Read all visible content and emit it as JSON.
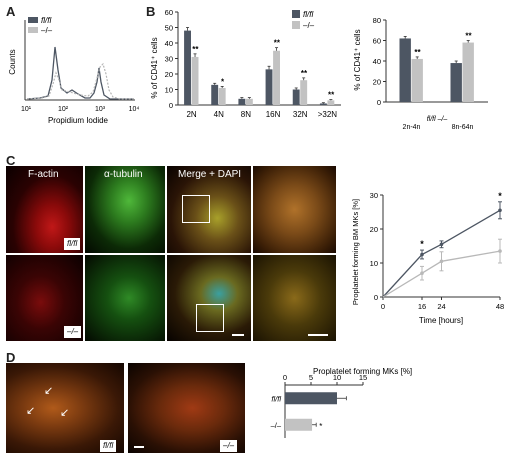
{
  "panels": {
    "a": "A",
    "b": "B",
    "c": "C",
    "d": "D"
  },
  "colors": {
    "fl": "#4d5663",
    "ko": "#c2c2c2"
  },
  "legend": {
    "fl": "fl/fl",
    "ko": "–/–"
  },
  "genotypes": {
    "fl": "fl/fl",
    "ko": "–/–"
  },
  "micro_labels": {
    "factin": "F-actin",
    "tubulin": "α-tubulin",
    "merge": "Merge + DAPI"
  },
  "chart_data": [
    {
      "id": "A",
      "type": "line",
      "xlabel": "Propidium Iodide",
      "ylabel": "Counts",
      "x_scale": "log",
      "x_ticks": [
        "10¹",
        "10²",
        "10³",
        "10⁴"
      ],
      "series": [
        {
          "name": "fl/fl"
        },
        {
          "name": "–/–"
        }
      ]
    },
    {
      "id": "B1",
      "type": "bar",
      "ylabel": "% of CD41⁺ cells",
      "ylim": [
        0,
        60
      ],
      "yticks": [
        "0",
        "10",
        "20",
        "30",
        "40",
        "50",
        "60"
      ],
      "categories": [
        "2N",
        "4N",
        "8N",
        "16N",
        "32N",
        ">32N"
      ],
      "series": [
        {
          "name": "fl/fl",
          "values": [
            48,
            13,
            4,
            23,
            10,
            1
          ],
          "errors": [
            2,
            1,
            0.8,
            2,
            1,
            0.5
          ]
        },
        {
          "name": "–/–",
          "values": [
            31,
            11,
            4,
            35,
            16,
            3
          ],
          "errors": [
            2,
            1,
            0.8,
            2,
            1.5,
            0.5
          ]
        }
      ],
      "annotations": [
        "**",
        "*",
        "",
        "**",
        "**",
        "**"
      ]
    },
    {
      "id": "B2",
      "type": "bar",
      "ylabel": "% of CD41⁺ cells",
      "ylim": [
        0,
        80
      ],
      "yticks": [
        "0",
        "20",
        "40",
        "60",
        "80"
      ],
      "group_header": "fl/fl –/–",
      "categories": [
        "2n-4n",
        "8n-64n"
      ],
      "series": [
        {
          "name": "fl/fl",
          "values": [
            62,
            38
          ],
          "errors": [
            2,
            2
          ]
        },
        {
          "name": "–/–",
          "values": [
            42,
            58
          ],
          "errors": [
            2,
            2
          ]
        }
      ],
      "annotations": [
        "**",
        "**"
      ]
    },
    {
      "id": "C",
      "type": "line",
      "xlabel": "Time [hours]",
      "ylabel": "Proplatelet forming BM MKs [%]",
      "xlim": [
        0,
        48
      ],
      "ylim": [
        0,
        30
      ],
      "xticks": [
        "0",
        "16",
        "24",
        "48"
      ],
      "yticks": [
        "0",
        "10",
        "20",
        "30"
      ],
      "x": [
        16,
        24,
        48
      ],
      "series": [
        {
          "name": "fl/fl",
          "values": [
            12.5,
            15.5,
            25.5
          ],
          "errors": [
            1.3,
            1,
            2.5
          ]
        },
        {
          "name": "–/–",
          "values": [
            7,
            10.5,
            13.5
          ],
          "errors": [
            2,
            2.8,
            3.5
          ]
        }
      ],
      "annotations": [
        "*",
        "",
        "*"
      ]
    },
    {
      "id": "D",
      "type": "bar",
      "orientation": "horizontal",
      "title": "Proplatelet forming MKs [%]",
      "xlim": [
        0,
        15
      ],
      "xticks": [
        "0",
        "5",
        "10",
        "15"
      ],
      "categories": [
        "fl/fl",
        "–/–"
      ],
      "values": [
        10,
        5.2
      ],
      "errors": [
        1.8,
        0.8
      ],
      "annotations": [
        "",
        "*"
      ]
    }
  ]
}
